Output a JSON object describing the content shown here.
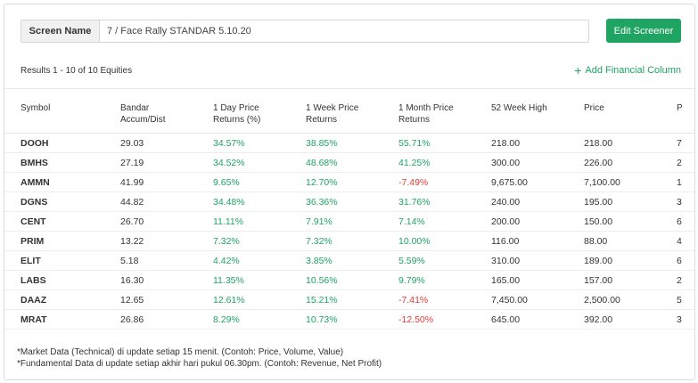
{
  "screen": {
    "label": "Screen Name",
    "value": "7 / Face Rally STANDAR 5.10.20"
  },
  "edit_button": "Edit Screener",
  "results_text": "Results 1 - 10 of 10 Equities",
  "add_column": {
    "icon": "+",
    "label": "Add Financial Column"
  },
  "columns": [
    {
      "line1": "Symbol",
      "line2": ""
    },
    {
      "line1": "Bandar",
      "line2": "Accum/Dist"
    },
    {
      "line1": "1 Day Price",
      "line2": "Returns (%)"
    },
    {
      "line1": "1 Week Price",
      "line2": "Returns"
    },
    {
      "line1": "1 Month Price",
      "line2": "Returns"
    },
    {
      "line1": "52 Week High",
      "line2": ""
    },
    {
      "line1": "Price",
      "line2": ""
    },
    {
      "line1": "P",
      "line2": ""
    }
  ],
  "rows": [
    {
      "symbol": "DOOH",
      "bandar": "29.03",
      "day": "34.57%",
      "week": "38.85%",
      "month": "55.71%",
      "high52": "218.00",
      "price": "218.00",
      "extra": "7"
    },
    {
      "symbol": "BMHS",
      "bandar": "27.19",
      "day": "34.52%",
      "week": "48.68%",
      "month": "41.25%",
      "high52": "300.00",
      "price": "226.00",
      "extra": "2"
    },
    {
      "symbol": "AMMN",
      "bandar": "41.99",
      "day": "9.65%",
      "week": "12.70%",
      "month": "-7.49%",
      "high52": "9,675.00",
      "price": "7,100.00",
      "extra": "1"
    },
    {
      "symbol": "DGNS",
      "bandar": "44.82",
      "day": "34.48%",
      "week": "36.36%",
      "month": "31.76%",
      "high52": "240.00",
      "price": "195.00",
      "extra": "3"
    },
    {
      "symbol": "CENT",
      "bandar": "26.70",
      "day": "11.11%",
      "week": "7.91%",
      "month": "7.14%",
      "high52": "200.00",
      "price": "150.00",
      "extra": "6"
    },
    {
      "symbol": "PRIM",
      "bandar": "13.22",
      "day": "7.32%",
      "week": "7.32%",
      "month": "10.00%",
      "high52": "116.00",
      "price": "88.00",
      "extra": "4"
    },
    {
      "symbol": "ELIT",
      "bandar": "5.18",
      "day": "4.42%",
      "week": "3.85%",
      "month": "5.59%",
      "high52": "310.00",
      "price": "189.00",
      "extra": "6"
    },
    {
      "symbol": "LABS",
      "bandar": "16.30",
      "day": "11.35%",
      "week": "10.56%",
      "month": "9.79%",
      "high52": "165.00",
      "price": "157.00",
      "extra": "2"
    },
    {
      "symbol": "DAAZ",
      "bandar": "12.65",
      "day": "12.61%",
      "week": "15.21%",
      "month": "-7.41%",
      "high52": "7,450.00",
      "price": "2,500.00",
      "extra": "5"
    },
    {
      "symbol": "MRAT",
      "bandar": "26.86",
      "day": "8.29%",
      "week": "10.73%",
      "month": "-12.50%",
      "high52": "645.00",
      "price": "392.00",
      "extra": "3"
    }
  ],
  "footnotes": [
    "*Market Data (Technical) di update setiap 15 menit. (Contoh: Price, Volume, Value)",
    "*Fundamental Data di update setiap akhir hari pukul 06.30pm. (Contoh: Revenue, Net Profit)"
  ],
  "colors": {
    "accent": "#1fa463",
    "negative": "#e53935"
  }
}
